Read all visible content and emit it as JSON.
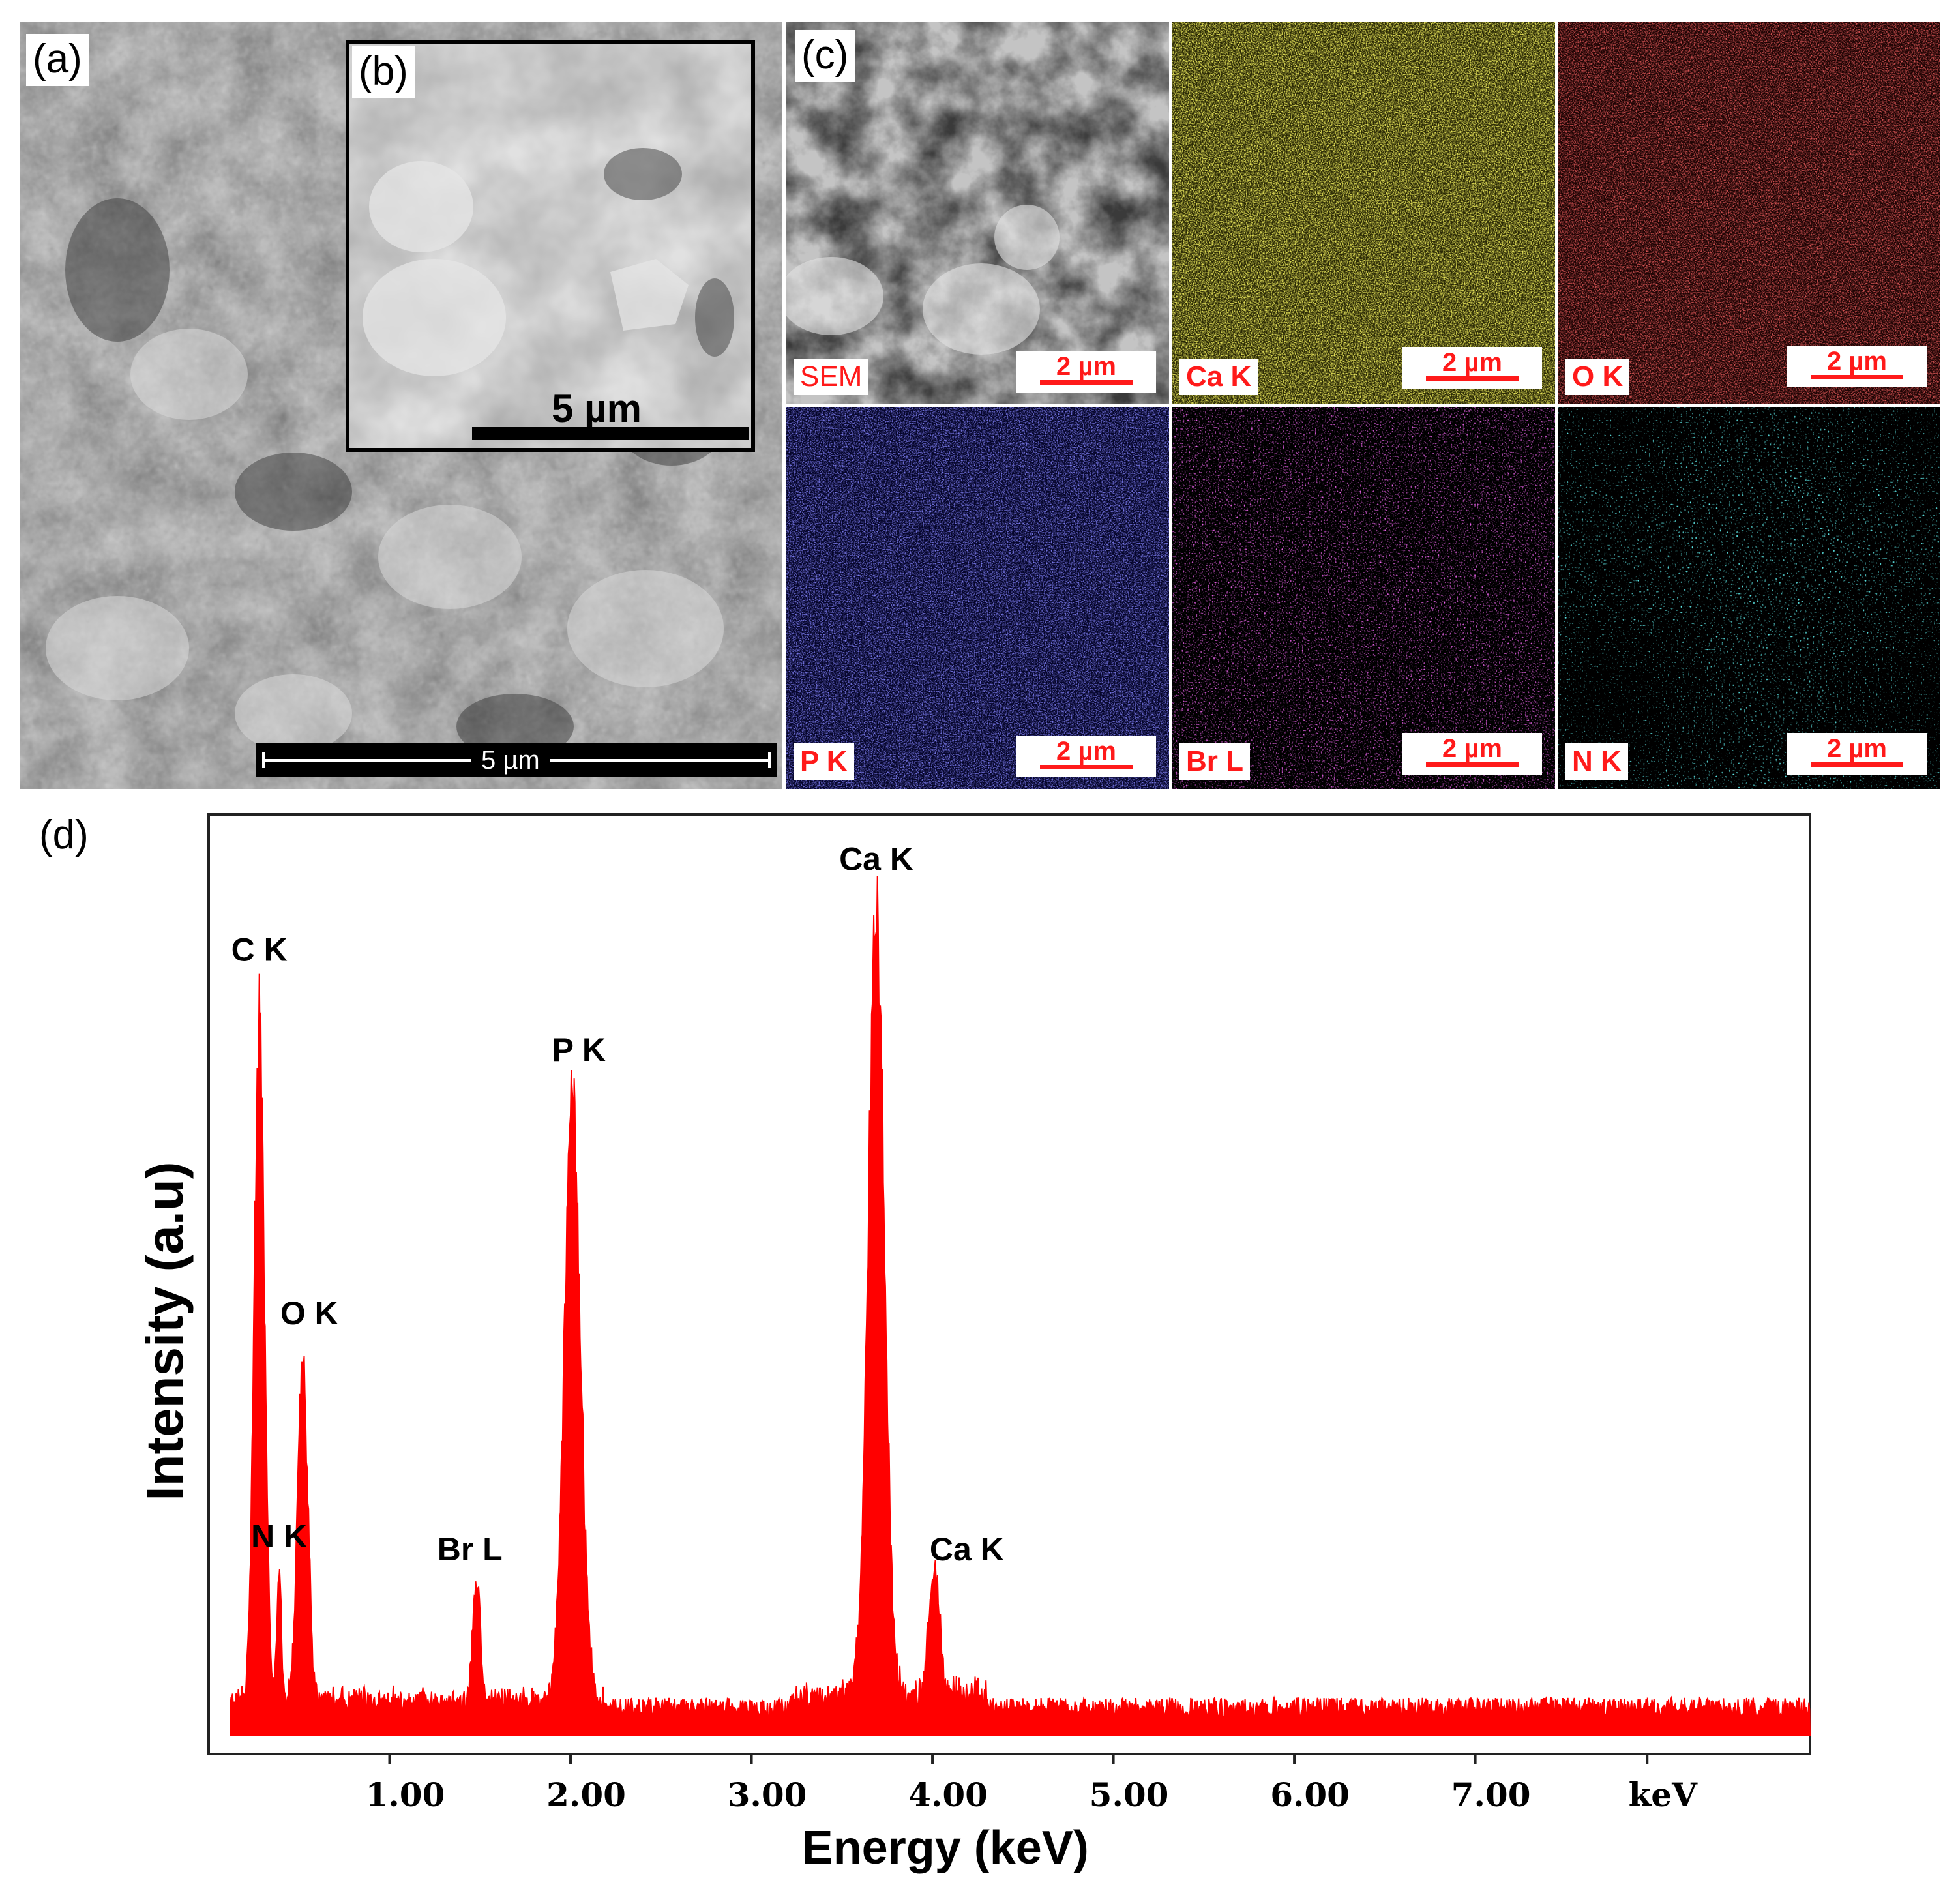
{
  "panels": {
    "a": {
      "label": "(a)",
      "scale_bar": "5 µm",
      "inset": {
        "label": "(b)",
        "scale_bar": "5 µm"
      }
    },
    "c": {
      "label": "(c)",
      "maps": [
        {
          "label": "SEM",
          "scale_bar": "2 µm",
          "color": "#bdbdbd"
        },
        {
          "label": "Ca K",
          "scale_bar": "2 µm",
          "color": "#c9c21a"
        },
        {
          "label": "O K",
          "scale_bar": "2 µm",
          "color": "#c21f1f"
        },
        {
          "label": "P K",
          "scale_bar": "2 µm",
          "color": "#3a3ae0"
        },
        {
          "label": "Br L",
          "scale_bar": "2 µm",
          "color": "#e020e0"
        },
        {
          "label": "N K",
          "scale_bar": "2 µm",
          "color": "#1fe0e0"
        }
      ]
    },
    "d": {
      "label": "(d)"
    }
  },
  "chart_data": {
    "type": "line",
    "title": "",
    "xlabel": "Energy (keV)",
    "ylabel": "Intensity (a.u)",
    "xlim": [
      0.0,
      8.85
    ],
    "ylim": [
      0,
      100
    ],
    "x_ticks": [
      "1.00",
      "2.00",
      "3.00",
      "4.00",
      "5.00",
      "6.00",
      "7.00",
      "keV"
    ],
    "x_tick_values": [
      1.0,
      2.0,
      3.0,
      4.0,
      5.0,
      6.0,
      7.0,
      7.95
    ],
    "series_color": "#ff0000",
    "peaks": [
      {
        "label": "C K",
        "energy": 0.28,
        "intensity": 81
      },
      {
        "label": "N K",
        "energy": 0.39,
        "intensity": 15
      },
      {
        "label": "O K",
        "energy": 0.52,
        "intensity": 41
      },
      {
        "label": "Br L",
        "energy": 1.48,
        "intensity": 15
      },
      {
        "label": "P K",
        "energy": 2.01,
        "intensity": 70
      },
      {
        "label": "Ca K",
        "energy": 3.69,
        "intensity": 91
      },
      {
        "label": "Ca K",
        "energy": 4.01,
        "intensity": 15
      }
    ],
    "baseline": 2
  }
}
